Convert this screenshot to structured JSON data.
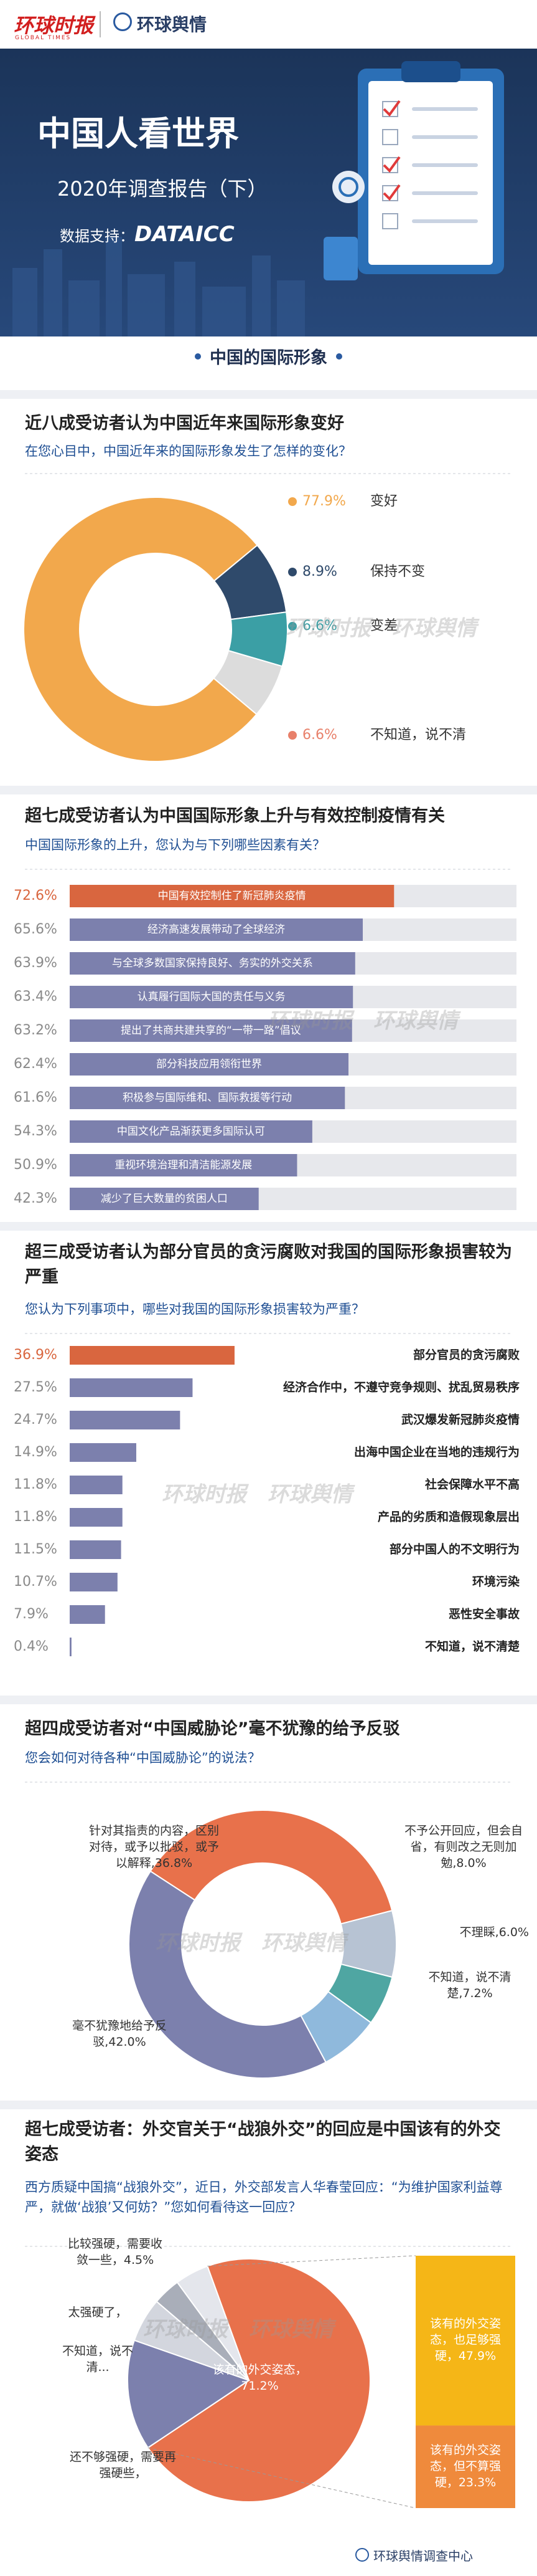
{
  "header": {
    "logo_1": "环球时报",
    "logo_1_sub": "GLOBAL TIMES",
    "logo_2": "环球舆情",
    "title": "中国人看世界",
    "subtitle": "2020年调查报告（下）",
    "data_support": "数据支持：",
    "data_partner": "DATAICC"
  },
  "section_banner": "中国的国际形象",
  "watermarks": [
    "环球时报",
    "环球舆情"
  ],
  "chart_data": [
    {
      "type": "pie",
      "donut": true,
      "title": "近八成受访者认为中国近年来国际形象变好",
      "subtitle": "在您心目中，中国近年来的国际形象发生了怎样的变化？",
      "categories": [
        "变好",
        "保持不变",
        "变差",
        "不知道，说不清"
      ],
      "values": [
        77.9,
        8.9,
        6.6,
        6.6
      ],
      "value_labels": [
        "77.9%",
        "8.9%",
        "6.6%",
        "6.6%"
      ],
      "colors": [
        "#f2a84c",
        "#2f4a6b",
        "#3b9fa5",
        "#dcdcdc"
      ],
      "label_colors": [
        "#f2a84c",
        "#2f4a6b",
        "#3b9fa5",
        "#e8806a"
      ]
    },
    {
      "type": "bar",
      "orientation": "horizontal",
      "title": "超七成受访者认为中国国际形象上升与有效控制疫情有关",
      "subtitle": "中国国际形象的上升，您认为与下列哪些因素有关？",
      "categories": [
        "中国有效控制住了新冠肺炎疫情",
        "经济高速发展带动了全球经济",
        "与全球多数国家保持良好、务实的外交关系",
        "认真履行国际大国的责任与义务",
        "提出了共商共建共享的“一带一路”倡议",
        "部分科技应用领衔世界",
        "积极参与国际维和、国际救援等行动",
        "中国文化产品渐获更多国际认可",
        "重视环境治理和清洁能源发展",
        "减少了巨大数量的贫困人口"
      ],
      "values": [
        72.6,
        65.6,
        63.9,
        63.4,
        63.2,
        62.4,
        61.6,
        54.3,
        50.9,
        42.3
      ],
      "value_labels": [
        "72.6%",
        "65.6%",
        "63.9%",
        "63.4%",
        "63.2%",
        "62.4%",
        "61.6%",
        "54.3%",
        "50.9%",
        "42.3%"
      ],
      "colors": [
        "#d9663f",
        "#7c80ad",
        "#7c80ad",
        "#7c80ad",
        "#7c80ad",
        "#7c80ad",
        "#7c80ad",
        "#7c80ad",
        "#7c80ad",
        "#7c80ad"
      ],
      "xlim": [
        0,
        100
      ]
    },
    {
      "type": "bar",
      "orientation": "horizontal",
      "title": "超三成受访者认为部分官员的贪污腐败对我国的国际形象损害较为严重",
      "subtitle": "您认为下列事项中，哪些对我国的国际形象损害较为严重？",
      "categories": [
        "部分官员的贪污腐败",
        "经济合作中，不遵守竞争规则、扰乱贸易秩序",
        "武汉爆发新冠肺炎疫情",
        "出海中国企业在当地的违规行为",
        "社会保障水平不高",
        "产品的劣质和造假现象层出",
        "部分中国人的不文明行为",
        "环境污染",
        "恶性安全事故",
        "不知道，说不清楚"
      ],
      "values": [
        36.9,
        27.5,
        24.7,
        14.9,
        11.8,
        11.8,
        11.5,
        10.7,
        7.9,
        0.4
      ],
      "value_labels": [
        "36.9%",
        "27.5%",
        "24.7%",
        "14.9%",
        "11.8%",
        "11.8%",
        "11.5%",
        "10.7%",
        "7.9%",
        "0.4%"
      ],
      "colors": [
        "#d9663f",
        "#7c80ad",
        "#7c80ad",
        "#7c80ad",
        "#7c80ad",
        "#7c80ad",
        "#7c80ad",
        "#7c80ad",
        "#7c80ad",
        "#7c80ad"
      ],
      "xlim": [
        0,
        100
      ]
    },
    {
      "type": "pie",
      "donut": true,
      "title": "超四成受访者对“中国威胁论”毫不犹豫的给予反驳",
      "subtitle": "您会如何对待各种“中国威胁论”的说法？",
      "categories": [
        "针对其指责的内容，区别对待，或予以批驳，或予以解释,",
        "不予公开回应，但会自省，有则改之无则加勉,",
        "不理睬,",
        "不知道，说不清楚,",
        "毫不犹豫地给予反驳,"
      ],
      "values": [
        36.8,
        8.0,
        6.0,
        7.2,
        42.0
      ],
      "value_labels": [
        "36.8%",
        "8.0%",
        "6.0%",
        "7.2%",
        "42.0%"
      ],
      "colors": [
        "#e8714b",
        "#b7c3d3",
        "#4fa6a2",
        "#8fb9dc",
        "#7c80ad"
      ]
    },
    {
      "type": "pie",
      "donut": false,
      "title": "超七成受访者：外交官关于“战狼外交”的回应是中国该有的外交姿态",
      "subtitle": "西方质疑中国搞“战狼外交”，近日，外交部发言人华春莹回应：“为维护国家利益尊严，就做‘战狼’又何妨？”您如何看待这一回应？",
      "categories": [
        "该有的外交姿态，",
        "还不够强硬，需要再强硬些，",
        "不知道，说不清...",
        "太强硬了，",
        "比较强硬，需要收敛一些，"
      ],
      "values": [
        71.2,
        14.7,
        5.9,
        3.7,
        4.5
      ],
      "value_labels": [
        "71.2%",
        null,
        null,
        null,
        "4.5%"
      ],
      "colors": [
        "#e8714b",
        "#7c80ad",
        "#d3d6de",
        "#a9aeb9",
        "#e4e6ec"
      ],
      "breakdown": {
        "categories": [
          "该有的外交姿态，也足够强硬，",
          "该有的外交姿态，但不算强硬，"
        ],
        "values": [
          47.9,
          23.3
        ],
        "value_labels": [
          "47.9%",
          "23.3%"
        ],
        "colors": [
          "#f5b617",
          "#ef8a3c"
        ]
      }
    }
  ],
  "footer": "环球舆情调查中心"
}
